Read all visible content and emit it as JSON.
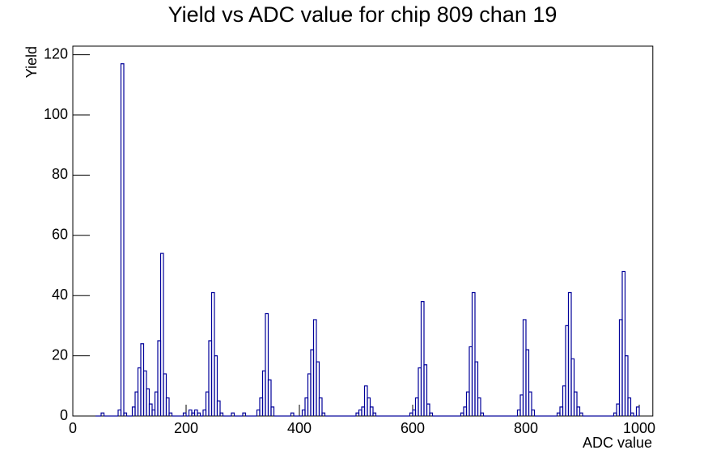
{
  "chart_data": {
    "type": "histogram",
    "title": "Yield vs ADC value for chip 809 chan 19",
    "x_label": "ADC value",
    "y_label": "Yield",
    "color": "#000099",
    "xlim": [
      0,
      1024
    ],
    "ylim": [
      0,
      122.85
    ],
    "xticks": [
      0,
      200,
      400,
      600,
      800,
      1000
    ],
    "yticks": [
      0,
      20,
      40,
      60,
      80,
      100,
      120
    ],
    "bins": [
      40,
      45,
      50,
      55,
      60,
      65,
      70,
      75,
      80,
      85,
      90,
      95,
      100,
      105,
      110,
      115,
      120,
      125,
      130,
      135,
      140,
      145,
      150,
      155,
      160,
      165,
      170,
      175,
      180,
      185,
      190,
      195,
      200,
      205,
      210,
      215,
      220,
      225,
      230,
      235,
      240,
      245,
      250,
      255,
      260,
      265,
      270,
      275,
      280,
      285,
      290,
      295,
      300,
      305,
      310,
      315,
      320,
      325,
      330,
      335,
      340,
      345,
      350,
      355,
      360,
      365,
      370,
      375,
      380,
      385,
      390,
      395,
      400,
      405,
      410,
      415,
      420,
      425,
      430,
      435,
      440,
      445,
      450,
      455,
      460,
      465,
      470,
      475,
      480,
      485,
      490,
      495,
      500,
      505,
      510,
      515,
      520,
      525,
      530,
      535,
      540,
      545,
      550,
      555,
      560,
      565,
      570,
      575,
      580,
      585,
      590,
      595,
      600,
      605,
      610,
      615,
      620,
      625,
      630,
      635,
      640,
      645,
      650,
      655,
      660,
      665,
      670,
      675,
      680,
      685,
      690,
      695,
      700,
      705,
      710,
      715,
      720,
      725,
      730,
      735,
      740,
      745,
      750,
      755,
      760,
      765,
      770,
      775,
      780,
      785,
      790,
      795,
      800,
      805,
      810,
      815,
      820,
      825,
      830,
      835,
      840,
      845,
      850,
      855,
      860,
      865,
      870,
      875,
      880,
      885,
      890,
      895,
      900,
      905,
      910,
      915,
      920,
      925,
      930,
      935,
      940,
      945,
      950,
      955,
      960,
      965,
      970,
      975,
      980,
      985,
      990,
      995,
      1000
    ],
    "counts": [
      0,
      0,
      1,
      0,
      0,
      0,
      0,
      0,
      2,
      117,
      1,
      0,
      0,
      3,
      8,
      16,
      24,
      15,
      9,
      4,
      2,
      8,
      25,
      54,
      14,
      6,
      1,
      0,
      0,
      0,
      0,
      1,
      0,
      2,
      1,
      2,
      1,
      0,
      2,
      8,
      25,
      41,
      20,
      5,
      1,
      0,
      0,
      0,
      1,
      0,
      0,
      0,
      1,
      0,
      0,
      0,
      0,
      2,
      6,
      15,
      34,
      12,
      3,
      0,
      0,
      0,
      0,
      0,
      0,
      1,
      0,
      0,
      0,
      2,
      6,
      14,
      22,
      32,
      18,
      6,
      1,
      0,
      0,
      0,
      0,
      0,
      0,
      0,
      0,
      0,
      0,
      0,
      1,
      2,
      3,
      10,
      6,
      3,
      1,
      0,
      0,
      0,
      0,
      0,
      0,
      0,
      0,
      0,
      0,
      0,
      0,
      1,
      2,
      6,
      16,
      38,
      17,
      4,
      1,
      0,
      0,
      0,
      0,
      0,
      0,
      0,
      0,
      0,
      0,
      1,
      3,
      8,
      23,
      41,
      18,
      6,
      1,
      0,
      0,
      0,
      0,
      0,
      0,
      0,
      0,
      0,
      0,
      0,
      0,
      2,
      7,
      32,
      22,
      8,
      2,
      0,
      0,
      0,
      0,
      0,
      0,
      0,
      0,
      1,
      3,
      10,
      30,
      41,
      19,
      8,
      3,
      1,
      0,
      0,
      0,
      0,
      0,
      0,
      0,
      0,
      0,
      0,
      0,
      1,
      4,
      32,
      48,
      20,
      6,
      1,
      0,
      3
    ]
  }
}
